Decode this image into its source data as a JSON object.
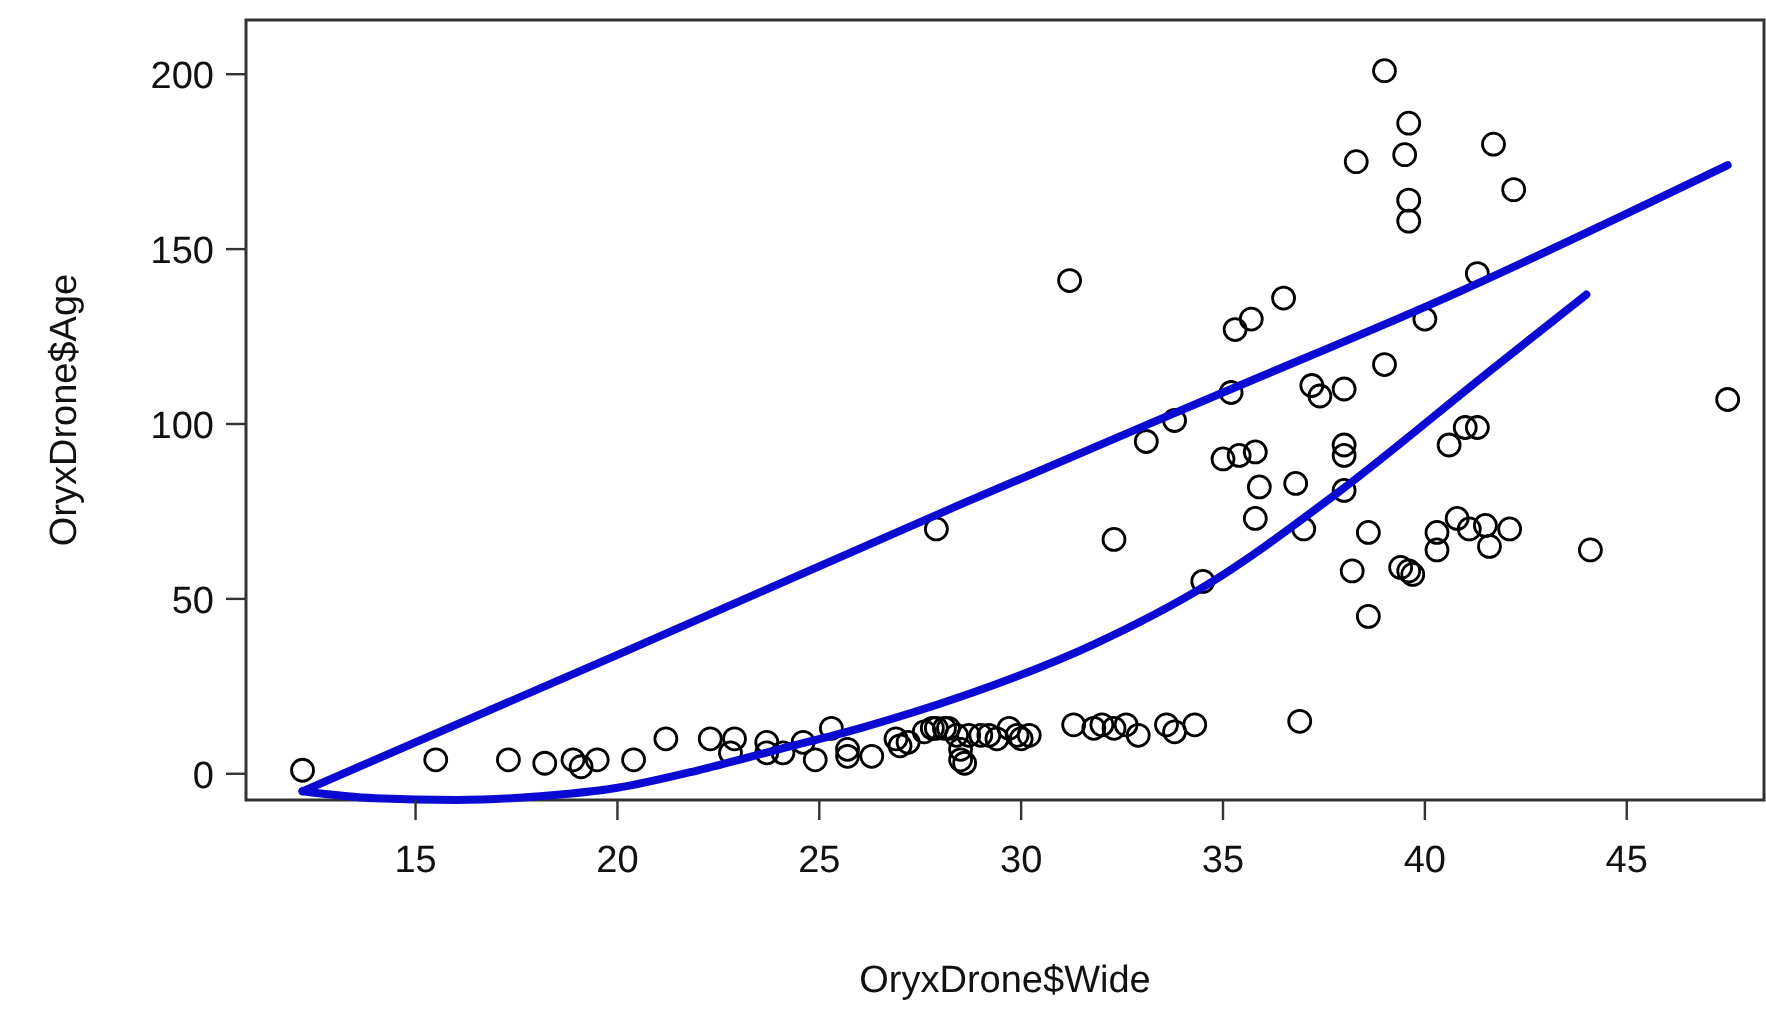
{
  "chart_data": {
    "type": "scatter",
    "xlabel": "OryxDrone$Wide",
    "ylabel": "OryxDrone$Age",
    "xlim": [
      10.8,
      48.4
    ],
    "ylim": [
      -7.5,
      215.5
    ],
    "xticks": [
      15,
      20,
      25,
      30,
      35,
      40,
      45
    ],
    "yticks": [
      0,
      50,
      100,
      150,
      200
    ],
    "grid": false,
    "series": [
      {
        "marker": "circle",
        "color": "#000000",
        "x": [
          12.2,
          15.5,
          17.3,
          18.2,
          18.9,
          19.1,
          19.5,
          20.4,
          21.2,
          22.3,
          22.8,
          22.9,
          23.7,
          23.7,
          24.1,
          24.6,
          24.9,
          25.3,
          25.7,
          25.7,
          26.3,
          26.9,
          27.0,
          27.2,
          27.6,
          27.8,
          27.9,
          28.1,
          28.2,
          28.4,
          28.5,
          28.6,
          28.5,
          28.7,
          29.0,
          29.2,
          29.4,
          29.7,
          29.9,
          30.0,
          30.2,
          27.9,
          31.2,
          31.3,
          31.8,
          32.0,
          32.3,
          32.6,
          32.9,
          33.6,
          33.8,
          34.3,
          36.9,
          32.3,
          33.1,
          33.8,
          35.3,
          35.7,
          36.5,
          35.2,
          35.0,
          35.4,
          35.8,
          35.9,
          35.8,
          34.5,
          36.8,
          37.0,
          37.2,
          37.4,
          38.0,
          38.0,
          38.0,
          38.0,
          39.0,
          38.6,
          38.2,
          38.6,
          38.3,
          39.0,
          39.6,
          39.5,
          39.6,
          39.6,
          40.0,
          41.3,
          41.7,
          42.2,
          40.6,
          41.0,
          41.3,
          39.4,
          39.6,
          39.7,
          40.3,
          40.3,
          40.8,
          41.1,
          41.5,
          41.6,
          42.1,
          44.1,
          47.5
        ],
        "values": [
          1,
          4,
          4,
          3,
          4,
          2,
          4,
          4,
          10,
          10,
          6,
          10,
          9,
          6,
          6,
          9,
          4,
          13,
          5,
          7,
          5,
          10,
          8,
          9,
          12,
          13,
          13,
          13,
          13,
          11,
          7,
          3,
          4,
          11,
          11,
          11,
          10,
          13,
          11,
          10,
          11,
          70,
          141,
          14,
          13,
          14,
          13,
          14,
          11,
          14,
          12,
          14,
          15,
          67,
          95,
          101,
          127,
          130,
          136,
          109,
          90,
          91,
          92,
          82,
          73,
          55,
          83,
          70,
          111,
          108,
          110,
          94,
          91,
          81,
          117,
          69,
          58,
          45,
          175,
          201,
          186,
          177,
          164,
          158,
          130,
          143,
          180,
          167,
          94,
          99,
          99,
          59,
          58,
          57,
          69,
          64,
          73,
          70,
          71,
          65,
          70,
          64,
          107
        ]
      },
      {
        "type": "line",
        "marker": "none",
        "line_style": "solid",
        "color": "#0a0ad2",
        "x": [
          12.2,
          20,
          28.5,
          35,
          40.5,
          47.5
        ],
        "values": [
          -5,
          34,
          77,
          109,
          136,
          174
        ]
      },
      {
        "type": "line",
        "marker": "none",
        "line_style": "solid",
        "color": "#0a0ad2",
        "x": [
          12.2,
          14,
          16,
          18,
          20,
          22,
          24,
          26,
          28.5,
          31.8,
          34.6,
          37.8,
          41.7,
          44
        ],
        "values": [
          -5,
          -7,
          -7.5,
          -6.5,
          -4,
          1,
          7,
          13,
          22,
          37,
          54,
          80,
          116,
          137
        ]
      }
    ]
  }
}
